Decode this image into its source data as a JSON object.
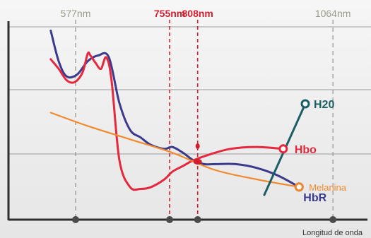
{
  "chart_data": {
    "type": "line",
    "xlabel": "Longitud de onda",
    "ylabel": "",
    "title": "",
    "xlim": [
      450,
      1120
    ],
    "ylim": [
      0,
      100
    ],
    "grid": true,
    "wavelength_markers": [
      {
        "label": "577nm",
        "x": 577,
        "color": "#9a9a8a",
        "style": "gray"
      },
      {
        "label": "755nm",
        "x": 755,
        "color": "#d11f2f",
        "style": "red"
      },
      {
        "label": "808nm",
        "x": 808,
        "color": "#d11f2f",
        "style": "red"
      },
      {
        "label": "1064nm",
        "x": 1064,
        "color": "#9a9a8a",
        "style": "gray"
      }
    ],
    "series": [
      {
        "name": "HbR",
        "color": "#3b3a8c",
        "x": [
          530,
          545,
          560,
          580,
          600,
          620,
          640,
          660,
          680,
          700,
          720,
          745,
          760,
          780,
          800,
          820,
          840,
          880,
          920,
          960,
          1000,
          1030,
          1060,
          1090,
          1120
        ],
        "y": [
          98,
          82,
          74,
          75,
          82,
          85,
          84,
          60,
          46,
          42,
          38,
          36,
          37,
          34,
          30,
          28,
          28,
          28,
          26,
          22,
          16,
          12,
          5,
          -2,
          -4
        ]
      },
      {
        "name": "Hbo",
        "color": "#e5283d",
        "x": [
          530,
          545,
          560,
          575,
          590,
          600,
          605,
          615,
          625,
          635,
          645,
          660,
          680,
          700,
          720,
          745,
          760,
          780,
          800,
          830,
          870,
          920,
          970,
          1020,
          1060,
          1090,
          1120
        ],
        "y": [
          83,
          78,
          72,
          71,
          76,
          86,
          85,
          81,
          78,
          84,
          72,
          30,
          16,
          15,
          16,
          20,
          24,
          27,
          30,
          33,
          36,
          37,
          36,
          30,
          22,
          14,
          10
        ]
      },
      {
        "name": "Melanina",
        "color": "#f08a2e",
        "x": [
          530,
          600,
          680,
          760,
          840,
          920,
          1000,
          1060,
          1120
        ],
        "y": [
          55,
          48,
          41,
          34,
          25,
          20,
          16,
          12,
          6
        ]
      },
      {
        "name": "H20",
        "color": "#1b5e63",
        "x": [
          1040,
          1065,
          1090,
          1115
        ],
        "y": [
          -10,
          20,
          50,
          76
        ]
      }
    ]
  }
}
